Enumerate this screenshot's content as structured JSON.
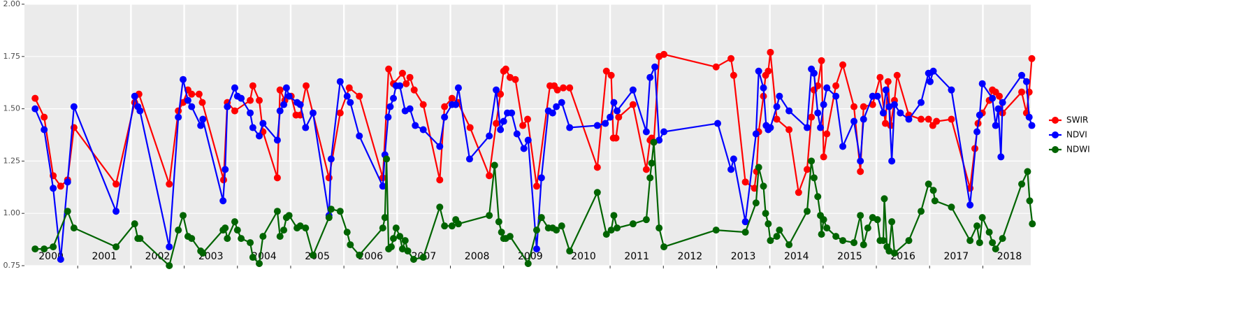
{
  "chart_data": {
    "type": "line",
    "legend": "right",
    "grid": true,
    "background": "#ebebeb",
    "xlim": [
      2000,
      2018.9
    ],
    "xticks": [
      2001,
      2002,
      2003,
      2004,
      2005,
      2006,
      2007,
      2008,
      2009,
      2010,
      2011,
      2012,
      2013,
      2014,
      2015,
      2016,
      2017,
      2018
    ],
    "year_labels": [
      "2000",
      "2001",
      "2002",
      "2003",
      "2004",
      "2005",
      "2006",
      "2007",
      "2008",
      "2009",
      "2010",
      "2011",
      "2012",
      "2013",
      "2014",
      "2015",
      "2016",
      "2017",
      "2018"
    ],
    "ylim": [
      0.75,
      2.0
    ],
    "yticks": [
      0.75,
      {
        "value": 1.0,
        "label": "1.00"
      },
      1.25,
      {
        "value": 1.5,
        "label": "1.50"
      },
      1.75,
      {
        "value": 2.0,
        "label": "2.00"
      }
    ],
    "series": [
      {
        "name": "SWIR",
        "color": "#ff0000",
        "x": [
          2000.2,
          2000.37,
          2000.54,
          2000.68,
          2000.81,
          2000.93,
          2001.72,
          2002.07,
          2002.15,
          2002.72,
          2002.89,
          2002.98,
          2003.07,
          2003.14,
          2003.28,
          2003.34,
          2003.74,
          2003.81,
          2003.95,
          2004.24,
          2004.29,
          2004.41,
          2004.48,
          2004.75,
          2004.8,
          2004.89,
          2005.01,
          2005.1,
          2005.18,
          2005.29,
          2005.72,
          2005.93,
          2006.1,
          2006.29,
          2006.73,
          2006.84,
          2006.93,
          2007.1,
          2007.17,
          2007.24,
          2007.32,
          2007.49,
          2007.8,
          2007.89,
          2008.03,
          2008.14,
          2008.37,
          2008.73,
          2008.86,
          2008.94,
          2009.0,
          2009.04,
          2009.12,
          2009.22,
          2009.36,
          2009.45,
          2009.62,
          2009.87,
          2009.95,
          2010.01,
          2010.12,
          2010.24,
          2010.76,
          2010.93,
          2011.02,
          2011.06,
          2011.11,
          2011.16,
          2011.43,
          2011.68,
          2011.75,
          2011.78,
          2011.82,
          2011.92,
          2012.01,
          2012.99,
          2013.27,
          2013.32,
          2013.54,
          2013.71,
          2013.75,
          2013.79,
          2013.88,
          2013.92,
          2013.97,
          2014.01,
          2014.13,
          2014.36,
          2014.54,
          2014.7,
          2014.78,
          2014.83,
          2014.9,
          2014.97,
          2015.01,
          2015.07,
          2015.24,
          2015.37,
          2015.58,
          2015.7,
          2015.76,
          2015.93,
          2016.07,
          2016.17,
          2016.22,
          2016.27,
          2016.34,
          2016.39,
          2016.61,
          2016.84,
          2016.98,
          2017.06,
          2017.13,
          2017.41,
          2017.76,
          2017.85,
          2017.91,
          2017.99,
          2018.12,
          2018.18,
          2018.24,
          2018.31,
          2018.37,
          2018.73,
          2018.82,
          2018.87,
          2018.92
        ],
        "values": [
          1.55,
          1.46,
          1.18,
          1.13,
          1.16,
          1.41,
          1.14,
          1.53,
          1.57,
          1.14,
          1.49,
          1.53,
          1.59,
          1.57,
          1.57,
          1.53,
          1.16,
          1.53,
          1.49,
          1.54,
          1.61,
          1.54,
          1.39,
          1.17,
          1.59,
          1.54,
          1.56,
          1.47,
          1.47,
          1.61,
          1.17,
          1.48,
          1.6,
          1.56,
          1.17,
          1.69,
          1.62,
          1.67,
          1.62,
          1.65,
          1.59,
          1.52,
          1.16,
          1.51,
          1.55,
          1.53,
          1.41,
          1.18,
          1.43,
          1.57,
          1.68,
          1.69,
          1.65,
          1.64,
          1.42,
          1.45,
          1.13,
          1.61,
          1.61,
          1.59,
          1.6,
          1.6,
          1.22,
          1.68,
          1.66,
          1.36,
          1.36,
          1.46,
          1.52,
          1.21,
          1.35,
          1.36,
          1.34,
          1.75,
          1.76,
          1.7,
          1.74,
          1.66,
          1.15,
          1.12,
          1.2,
          1.39,
          1.56,
          1.66,
          1.68,
          1.77,
          1.45,
          1.4,
          1.1,
          1.21,
          1.46,
          1.59,
          1.61,
          1.73,
          1.27,
          1.38,
          1.61,
          1.71,
          1.51,
          1.2,
          1.51,
          1.52,
          1.65,
          1.43,
          1.63,
          1.42,
          1.54,
          1.66,
          1.47,
          1.45,
          1.45,
          1.42,
          1.44,
          1.45,
          1.12,
          1.31,
          1.43,
          1.48,
          1.54,
          1.59,
          1.58,
          1.56,
          1.48,
          1.58,
          1.48,
          1.58,
          1.74
        ]
      },
      {
        "name": "NDVI",
        "color": "#0000ff",
        "x": [
          2000.2,
          2000.37,
          2000.54,
          2000.68,
          2000.81,
          2000.93,
          2001.72,
          2002.07,
          2002.13,
          2002.17,
          2002.72,
          2002.89,
          2002.98,
          2003.07,
          2003.14,
          2003.31,
          2003.35,
          2003.73,
          2003.77,
          2003.81,
          2003.95,
          2004.0,
          2004.07,
          2004.24,
          2004.29,
          2004.41,
          2004.48,
          2004.75,
          2004.8,
          2004.87,
          2004.92,
          2004.97,
          2005.12,
          2005.18,
          2005.28,
          2005.42,
          2005.72,
          2005.76,
          2005.93,
          2006.06,
          2006.12,
          2006.29,
          2006.73,
          2006.77,
          2006.83,
          2006.87,
          2006.93,
          2006.98,
          2007.05,
          2007.15,
          2007.24,
          2007.34,
          2007.49,
          2007.8,
          2007.89,
          2008.03,
          2008.1,
          2008.15,
          2008.36,
          2008.73,
          2008.86,
          2008.94,
          2009.0,
          2009.07,
          2009.15,
          2009.25,
          2009.38,
          2009.46,
          2009.62,
          2009.71,
          2009.84,
          2009.92,
          2009.99,
          2010.09,
          2010.24,
          2010.76,
          2010.91,
          2011.0,
          2011.07,
          2011.13,
          2011.43,
          2011.68,
          2011.75,
          2011.84,
          2011.92,
          2012.01,
          2013.02,
          2013.27,
          2013.32,
          2013.54,
          2013.74,
          2013.79,
          2013.88,
          2013.93,
          2013.97,
          2014.01,
          2014.13,
          2014.18,
          2014.36,
          2014.7,
          2014.78,
          2014.83,
          2014.9,
          2014.95,
          2015.01,
          2015.07,
          2015.24,
          2015.37,
          2015.58,
          2015.7,
          2015.76,
          2015.93,
          2016.02,
          2016.13,
          2016.18,
          2016.24,
          2016.29,
          2016.34,
          2016.45,
          2016.61,
          2016.84,
          2016.98,
          2017.01,
          2017.07,
          2017.41,
          2017.76,
          2017.89,
          2017.94,
          2017.99,
          2018.18,
          2018.24,
          2018.29,
          2018.34,
          2018.37,
          2018.73,
          2018.82,
          2018.87,
          2018.92
        ],
        "values": [
          1.5,
          1.4,
          1.12,
          0.78,
          1.15,
          1.51,
          1.01,
          1.56,
          1.51,
          1.49,
          0.84,
          1.46,
          1.64,
          1.54,
          1.51,
          1.42,
          1.45,
          1.06,
          1.21,
          1.51,
          1.6,
          1.56,
          1.55,
          1.48,
          1.41,
          1.37,
          1.43,
          1.35,
          1.49,
          1.52,
          1.6,
          1.56,
          1.53,
          1.52,
          1.41,
          1.48,
          0.99,
          1.26,
          1.63,
          1.56,
          1.53,
          1.37,
          1.13,
          1.28,
          1.46,
          1.51,
          1.55,
          1.61,
          1.61,
          1.49,
          1.5,
          1.42,
          1.4,
          1.32,
          1.46,
          1.52,
          1.52,
          1.6,
          1.26,
          1.37,
          1.59,
          1.4,
          1.44,
          1.48,
          1.48,
          1.38,
          1.31,
          1.35,
          0.83,
          1.17,
          1.49,
          1.48,
          1.51,
          1.53,
          1.41,
          1.42,
          1.43,
          1.46,
          1.53,
          1.49,
          1.59,
          1.39,
          1.65,
          1.7,
          1.35,
          1.39,
          1.43,
          1.21,
          1.26,
          0.96,
          1.38,
          1.68,
          1.6,
          1.42,
          1.4,
          1.41,
          1.51,
          1.56,
          1.49,
          1.41,
          1.69,
          1.67,
          1.48,
          1.41,
          1.52,
          1.6,
          1.56,
          1.32,
          1.44,
          1.25,
          1.45,
          1.56,
          1.56,
          1.48,
          1.59,
          1.51,
          1.25,
          1.52,
          1.48,
          1.45,
          1.53,
          1.67,
          1.63,
          1.68,
          1.59,
          1.04,
          1.39,
          1.47,
          1.62,
          1.55,
          1.42,
          1.5,
          1.27,
          1.53,
          1.66,
          1.63,
          1.46,
          1.42
        ]
      },
      {
        "name": "NDWI",
        "color": "#006400",
        "x": [
          2000.2,
          2000.37,
          2000.54,
          2000.81,
          2000.93,
          2001.72,
          2002.07,
          2002.13,
          2002.17,
          2002.72,
          2002.89,
          2002.98,
          2003.07,
          2003.14,
          2003.31,
          2003.35,
          2003.73,
          2003.77,
          2003.81,
          2003.95,
          2004.0,
          2004.07,
          2004.24,
          2004.29,
          2004.41,
          2004.48,
          2004.75,
          2004.8,
          2004.87,
          2004.92,
          2004.97,
          2005.12,
          2005.18,
          2005.28,
          2005.42,
          2005.72,
          2005.76,
          2005.93,
          2006.06,
          2006.12,
          2006.29,
          2006.73,
          2006.77,
          2006.8,
          2006.84,
          2006.89,
          2006.93,
          2006.98,
          2007.05,
          2007.1,
          2007.15,
          2007.2,
          2007.31,
          2007.49,
          2007.8,
          2007.89,
          2008.03,
          2008.1,
          2008.15,
          2008.73,
          2008.83,
          2008.91,
          2008.96,
          2009.0,
          2009.04,
          2009.12,
          2009.46,
          2009.62,
          2009.71,
          2009.84,
          2009.92,
          2009.99,
          2010.09,
          2010.24,
          2010.76,
          2010.93,
          2011.02,
          2011.07,
          2011.13,
          2011.43,
          2011.68,
          2011.75,
          2011.78,
          2011.82,
          2011.92,
          2012.01,
          2012.99,
          2013.54,
          2013.74,
          2013.79,
          2013.88,
          2013.92,
          2013.97,
          2014.01,
          2014.13,
          2014.18,
          2014.36,
          2014.7,
          2014.78,
          2014.83,
          2014.9,
          2014.95,
          2014.97,
          2015.01,
          2015.07,
          2015.24,
          2015.37,
          2015.58,
          2015.7,
          2015.76,
          2015.84,
          2015.93,
          2016.02,
          2016.07,
          2016.13,
          2016.15,
          2016.2,
          2016.24,
          2016.29,
          2016.34,
          2016.61,
          2016.84,
          2016.98,
          2017.07,
          2017.1,
          2017.41,
          2017.76,
          2017.89,
          2017.94,
          2017.99,
          2018.12,
          2018.18,
          2018.24,
          2018.37,
          2018.73,
          2018.84,
          2018.88,
          2018.93
        ],
        "values": [
          0.83,
          0.83,
          0.84,
          1.01,
          0.93,
          0.84,
          0.95,
          0.88,
          0.88,
          0.75,
          0.92,
          0.99,
          0.89,
          0.88,
          0.82,
          0.81,
          0.92,
          0.93,
          0.88,
          0.96,
          0.92,
          0.88,
          0.86,
          0.79,
          0.76,
          0.89,
          1.01,
          0.89,
          0.92,
          0.98,
          0.99,
          0.93,
          0.94,
          0.93,
          0.8,
          0.98,
          1.02,
          1.01,
          0.91,
          0.85,
          0.8,
          0.93,
          0.98,
          1.26,
          0.83,
          0.84,
          0.88,
          0.93,
          0.89,
          0.83,
          0.87,
          0.82,
          0.78,
          0.79,
          1.03,
          0.94,
          0.94,
          0.97,
          0.95,
          0.99,
          1.23,
          0.96,
          0.91,
          0.88,
          0.88,
          0.89,
          0.76,
          0.92,
          0.98,
          0.93,
          0.93,
          0.92,
          0.94,
          0.82,
          1.1,
          0.9,
          0.92,
          0.99,
          0.93,
          0.95,
          0.97,
          1.17,
          1.24,
          1.34,
          0.93,
          0.84,
          0.92,
          0.91,
          1.05,
          1.22,
          1.13,
          1.0,
          0.95,
          0.87,
          0.89,
          0.92,
          0.85,
          1.01,
          1.25,
          1.17,
          1.08,
          0.99,
          0.9,
          0.97,
          0.93,
          0.89,
          0.87,
          0.86,
          0.99,
          0.85,
          0.93,
          0.98,
          0.97,
          0.87,
          0.87,
          1.07,
          0.84,
          0.82,
          0.96,
          0.81,
          0.87,
          1.01,
          1.14,
          1.11,
          1.06,
          1.03,
          0.87,
          0.94,
          0.86,
          0.98,
          0.91,
          0.86,
          0.83,
          0.88,
          1.14,
          1.2,
          1.06,
          0.95
        ]
      }
    ]
  }
}
